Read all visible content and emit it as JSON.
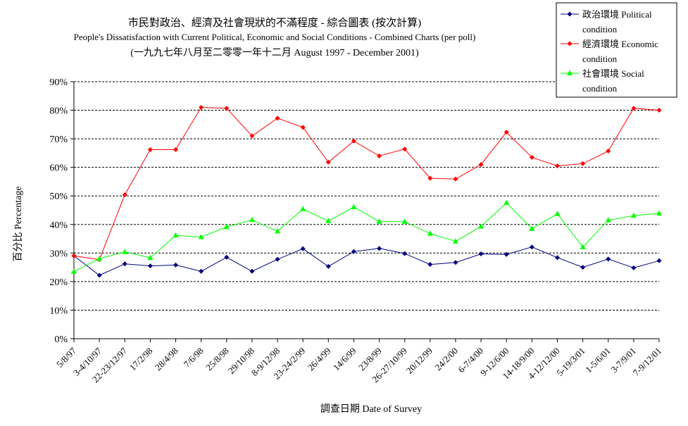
{
  "chart_data": {
    "type": "line",
    "title": "市民對政治、經濟及社會現狀的不滿程度 - 綜合圖表 (按次計算)",
    "subtitle": "People's Dissatisfaction with Current Political, Economic and Social Conditions - Combined Charts  (per poll)",
    "subtitle2": "(一九九七年八月至二零零一年十二月 August 1997 - December 2001)",
    "xlabel": "調查日期 Date of Survey",
    "ylabel": "百分比 Percentage",
    "ylim": [
      0,
      90
    ],
    "yticks": [
      "0%",
      "10%",
      "20%",
      "30%",
      "40%",
      "50%",
      "60%",
      "70%",
      "80%",
      "90%"
    ],
    "grid": "horizontal dashed",
    "legend_position": "top-right",
    "categories": [
      "5/8/97",
      "3-4/10/97",
      "22-23/12/97",
      "17/2/98",
      "28/4/98",
      "7/6/98",
      "25/8/98",
      "29/10/98",
      "8-9/12/98",
      "23-24/2/99",
      "26/4/99",
      "14/6/99",
      "23/8/99",
      "26-27/10/99",
      "20/12/99",
      "24/2/00",
      "6-7/4/00",
      "9-12/6/00",
      "14-18/9/00",
      "4-12/12/00",
      "5-19/3/01",
      "1-5/6/01",
      "3-7/9/01",
      "7-9/12/01"
    ],
    "series": [
      {
        "name": "政治環境 Political condition",
        "name_line1": "政治環境 Political",
        "name_line2": "condition",
        "color": "#000080",
        "marker": "diamond",
        "values": [
          29.0,
          22.2,
          26.2,
          25.5,
          25.8,
          23.6,
          28.5,
          23.6,
          27.8,
          31.5,
          25.3,
          30.5,
          31.6,
          29.8,
          26.0,
          26.7,
          29.7,
          29.5,
          32.1,
          28.4,
          25.0,
          27.9,
          24.8,
          27.3
        ]
      },
      {
        "name": "經濟環境 Economic condition",
        "name_line1": "經濟環境 Economic",
        "name_line2": "condition",
        "color": "#ff0000",
        "marker": "diamond",
        "values": [
          29.0,
          27.7,
          50.4,
          66.2,
          66.2,
          81.0,
          80.7,
          71.0,
          77.2,
          74.0,
          61.8,
          69.2,
          64.0,
          66.4,
          56.2,
          55.9,
          61.0,
          72.3,
          63.5,
          60.5,
          61.3,
          65.7,
          80.7,
          80.0
        ]
      },
      {
        "name": "社會環境 Social condition",
        "name_line1": "社會環境 Social",
        "name_line2": "condition",
        "color": "#00ff00",
        "marker": "triangle",
        "values": [
          23.5,
          28.0,
          30.4,
          28.3,
          36.2,
          35.6,
          39.1,
          41.6,
          37.6,
          45.4,
          41.2,
          46.1,
          41.0,
          41.0,
          36.8,
          34.1,
          39.3,
          47.6,
          38.5,
          43.7,
          32.1,
          41.5,
          43.1,
          43.9
        ]
      }
    ]
  }
}
